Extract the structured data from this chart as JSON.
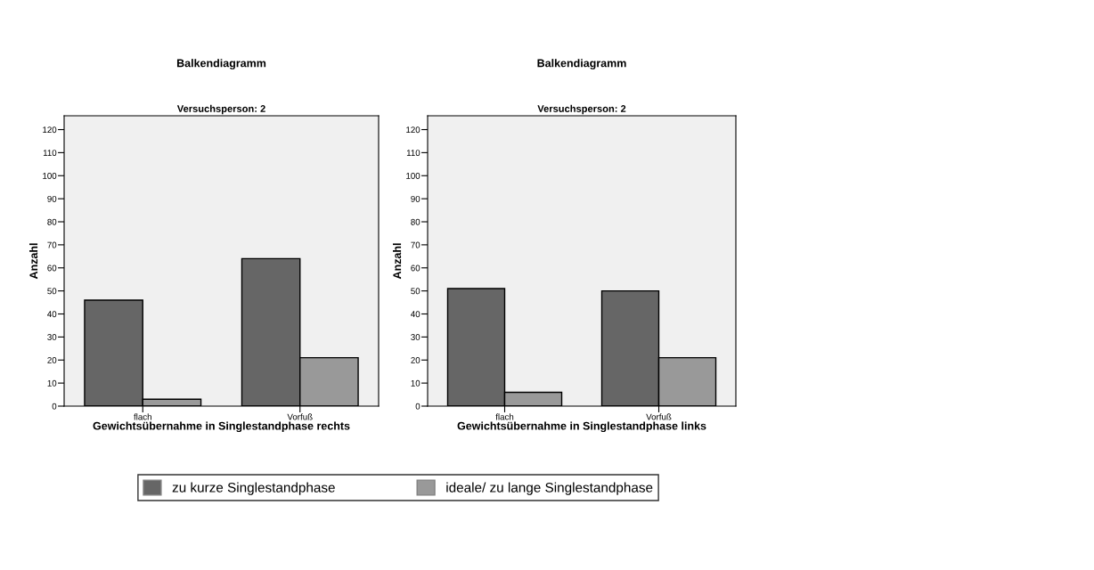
{
  "chart_data": [
    {
      "type": "bar",
      "title": "Balkendiagramm",
      "subtitle": "Versuchsperson: 2",
      "xlabel": "Gewichtsübernahme in Singlestandphase rechts",
      "ylabel": "Anzahl",
      "categories": [
        "flach",
        "Vorfuß"
      ],
      "series": [
        {
          "name": "zu kurze Singlestandphase",
          "color": "#666666",
          "values": [
            46,
            64
          ]
        },
        {
          "name": "ideale/ zu lange Singlestandphase",
          "color": "#999999",
          "values": [
            3,
            21
          ]
        }
      ],
      "ylim": [
        0,
        126
      ],
      "yticks": [
        0,
        10,
        20,
        30,
        40,
        50,
        60,
        70,
        80,
        90,
        100,
        110,
        120
      ],
      "grid": false,
      "legend": "bottom"
    },
    {
      "type": "bar",
      "title": "Balkendiagramm",
      "subtitle": "Versuchsperson: 2",
      "xlabel": "Gewichtsübernahme in Singlestandphase links",
      "ylabel": "Anzahl",
      "categories": [
        "flach",
        "Vorfuß"
      ],
      "series": [
        {
          "color": "#666666",
          "values": [
            51,
            50
          ]
        },
        {
          "color": "#999999",
          "values": [
            6,
            21
          ]
        }
      ],
      "ylim": [
        0,
        126
      ],
      "yticks": [
        0,
        10,
        20,
        30,
        40,
        50,
        60,
        70,
        80,
        90,
        100,
        110,
        120
      ],
      "grid": false
    }
  ]
}
